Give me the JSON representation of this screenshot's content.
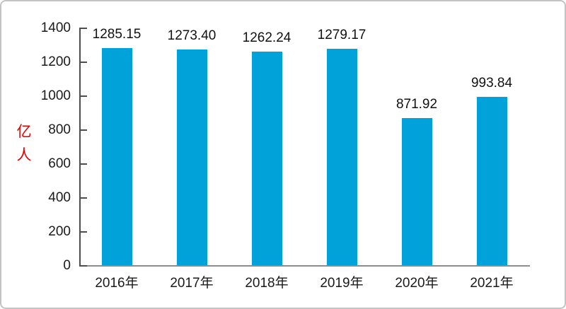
{
  "chart_data": {
    "type": "bar",
    "title": "",
    "xlabel": "",
    "ylabel": "亿人",
    "ylabel_chars": [
      "亿",
      "人"
    ],
    "categories": [
      "2016年",
      "2017年",
      "2018年",
      "2019年",
      "2020年",
      "2021年"
    ],
    "values": [
      1285.15,
      1273.4,
      1262.24,
      1279.17,
      871.92,
      993.84
    ],
    "value_labels": [
      "1285.15",
      "1273.40",
      "1262.24",
      "1279.17",
      "871.92",
      "993.84"
    ],
    "ylim": [
      0,
      1400
    ],
    "yticks": [
      0,
      200,
      400,
      600,
      800,
      1000,
      1200,
      1400
    ],
    "grid": false,
    "legend": "none",
    "colors": {
      "bar": "#00a2d9",
      "y_axis": "#4d4d4d",
      "x_axis": "#8c8c8c",
      "text": "#1a1a1a",
      "ylabel_text": "#e00000",
      "frame_border": "#c3c3c3",
      "background": "#ffffff"
    }
  }
}
